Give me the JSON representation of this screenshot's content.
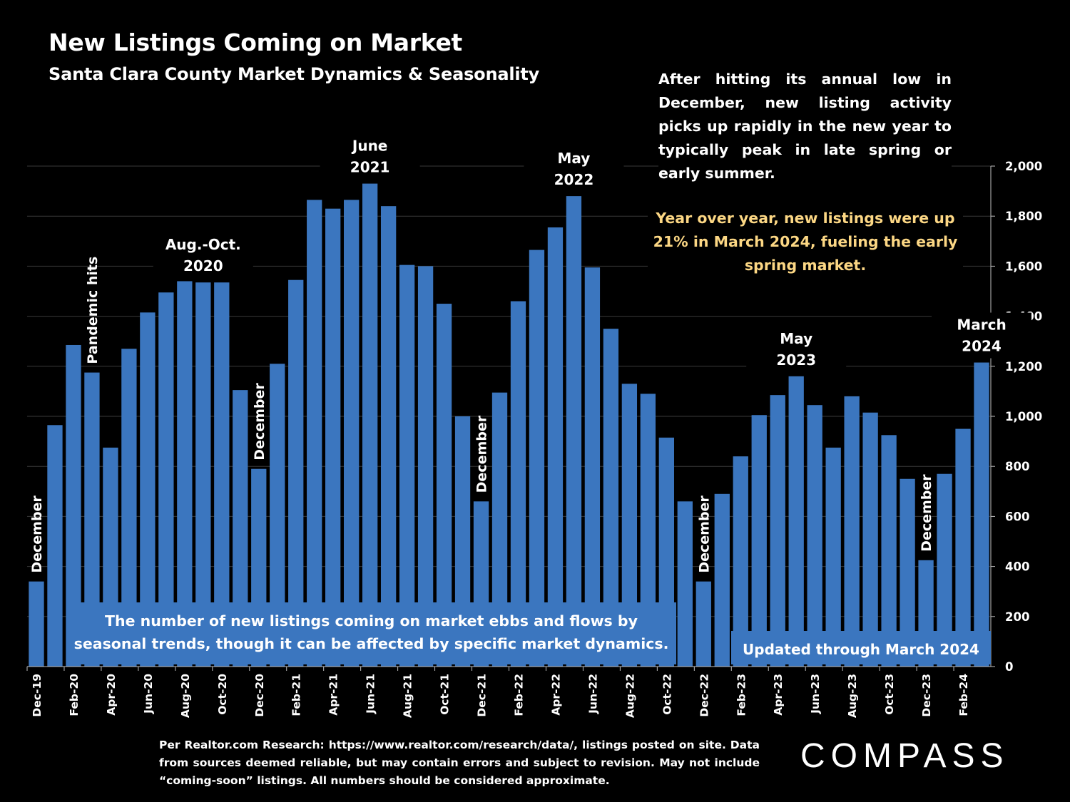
{
  "title": "New Listings Coming on Market",
  "subtitle": "Santa Clara County Market Dynamics & Seasonality",
  "description": "After hitting its annual low in December, new listing activity picks up rapidly in the new year to typically peak in late spring or early summer.",
  "yoy_note": "Year over year, new listings were up 21% in March 2024, fueling the early spring market.",
  "footnote": "Per Realtor.com Research: https://www.realtor.com/research/data/, listings posted on site. Data from sources deemed reliable, but may contain errors and subject to revision. May not include “coming-soon” listings. All numbers should be considered approximate.",
  "logo_text": "COMPASS",
  "colors": {
    "bar": "#3b76bf",
    "background": "#000000",
    "highlight": "#fcd784",
    "grid": "#3a3a3a"
  },
  "chart_data": {
    "type": "bar",
    "title": "New Listings Coming on Market",
    "categories": [
      "Dec-19",
      "Jan-20",
      "Feb-20",
      "Mar-20",
      "Apr-20",
      "May-20",
      "Jun-20",
      "Jul-20",
      "Aug-20",
      "Sep-20",
      "Oct-20",
      "Nov-20",
      "Dec-20",
      "Jan-21",
      "Feb-21",
      "Mar-21",
      "Apr-21",
      "May-21",
      "Jun-21",
      "Jul-21",
      "Aug-21",
      "Sep-21",
      "Oct-21",
      "Nov-21",
      "Dec-21",
      "Jan-22",
      "Feb-22",
      "Mar-22",
      "Apr-22",
      "May-22",
      "Jun-22",
      "Jul-22",
      "Aug-22",
      "Sep-22",
      "Oct-22",
      "Nov-22",
      "Dec-22",
      "Jan-23",
      "Feb-23",
      "Mar-23",
      "Apr-23",
      "May-23",
      "Jun-23",
      "Jul-23",
      "Aug-23",
      "Sep-23",
      "Oct-23",
      "Nov-23",
      "Dec-23",
      "Jan-24",
      "Feb-24",
      "Mar-24"
    ],
    "tick_labels": [
      "Dec-19",
      "Feb-20",
      "Apr-20",
      "Jun-20",
      "Aug-20",
      "Oct-20",
      "Dec-20",
      "Feb-21",
      "Apr-21",
      "Jun-21",
      "Aug-21",
      "Oct-21",
      "Dec-21",
      "Feb-22",
      "Apr-22",
      "Jun-22",
      "Aug-22",
      "Oct-22",
      "Dec-22",
      "Feb-23",
      "Apr-23",
      "Jun-23",
      "Aug-23",
      "Oct-23",
      "Dec-23",
      "Feb-24"
    ],
    "values": [
      340,
      965,
      1285,
      1175,
      875,
      1270,
      1415,
      1495,
      1540,
      1535,
      1535,
      1105,
      790,
      1210,
      1545,
      1865,
      1830,
      1865,
      1930,
      1840,
      1605,
      1600,
      1450,
      1000,
      660,
      1095,
      1460,
      1665,
      1755,
      1880,
      1595,
      1350,
      1130,
      1090,
      915,
      660,
      340,
      690,
      840,
      1005,
      1085,
      1160,
      1045,
      875,
      1080,
      1015,
      925,
      750,
      425,
      770,
      950,
      1215
    ],
    "ylim": [
      0,
      2000
    ],
    "yticks": [
      0,
      200,
      400,
      600,
      800,
      1000,
      1200,
      1400,
      1600,
      1800,
      2000
    ],
    "ytick_labels": [
      "0",
      "200",
      "400",
      "600",
      "800",
      "1,000",
      "1,200",
      "1,400",
      "1,600",
      "1,800",
      "2,000"
    ],
    "y_axis_side": "right",
    "grid": true,
    "annotations": [
      {
        "index": 0,
        "text": "December",
        "style": "vertical"
      },
      {
        "index": 3,
        "text": "Pandemic hits",
        "style": "vertical"
      },
      {
        "index": 9,
        "lines": [
          "Aug.-Oct.",
          "2020"
        ],
        "style": "horizontal"
      },
      {
        "index": 12,
        "text": "December",
        "style": "vertical"
      },
      {
        "index": 18,
        "lines": [
          "June",
          "2021"
        ],
        "style": "horizontal"
      },
      {
        "index": 24,
        "text": "December",
        "style": "vertical"
      },
      {
        "index": 29,
        "lines": [
          "May",
          "2022"
        ],
        "style": "horizontal"
      },
      {
        "index": 36,
        "text": "December",
        "style": "vertical"
      },
      {
        "index": 41,
        "lines": [
          "May",
          "2023"
        ],
        "style": "horizontal"
      },
      {
        "index": 48,
        "text": "December",
        "style": "vertical"
      },
      {
        "index": 51,
        "lines": [
          "March",
          "2024"
        ],
        "style": "horizontal"
      }
    ],
    "bottom_note": "The number of new listings coming on market ebbs and flows by seasonal trends, though it can be affected by specific market dynamics.",
    "updated_note": "Updated through March 2024"
  }
}
